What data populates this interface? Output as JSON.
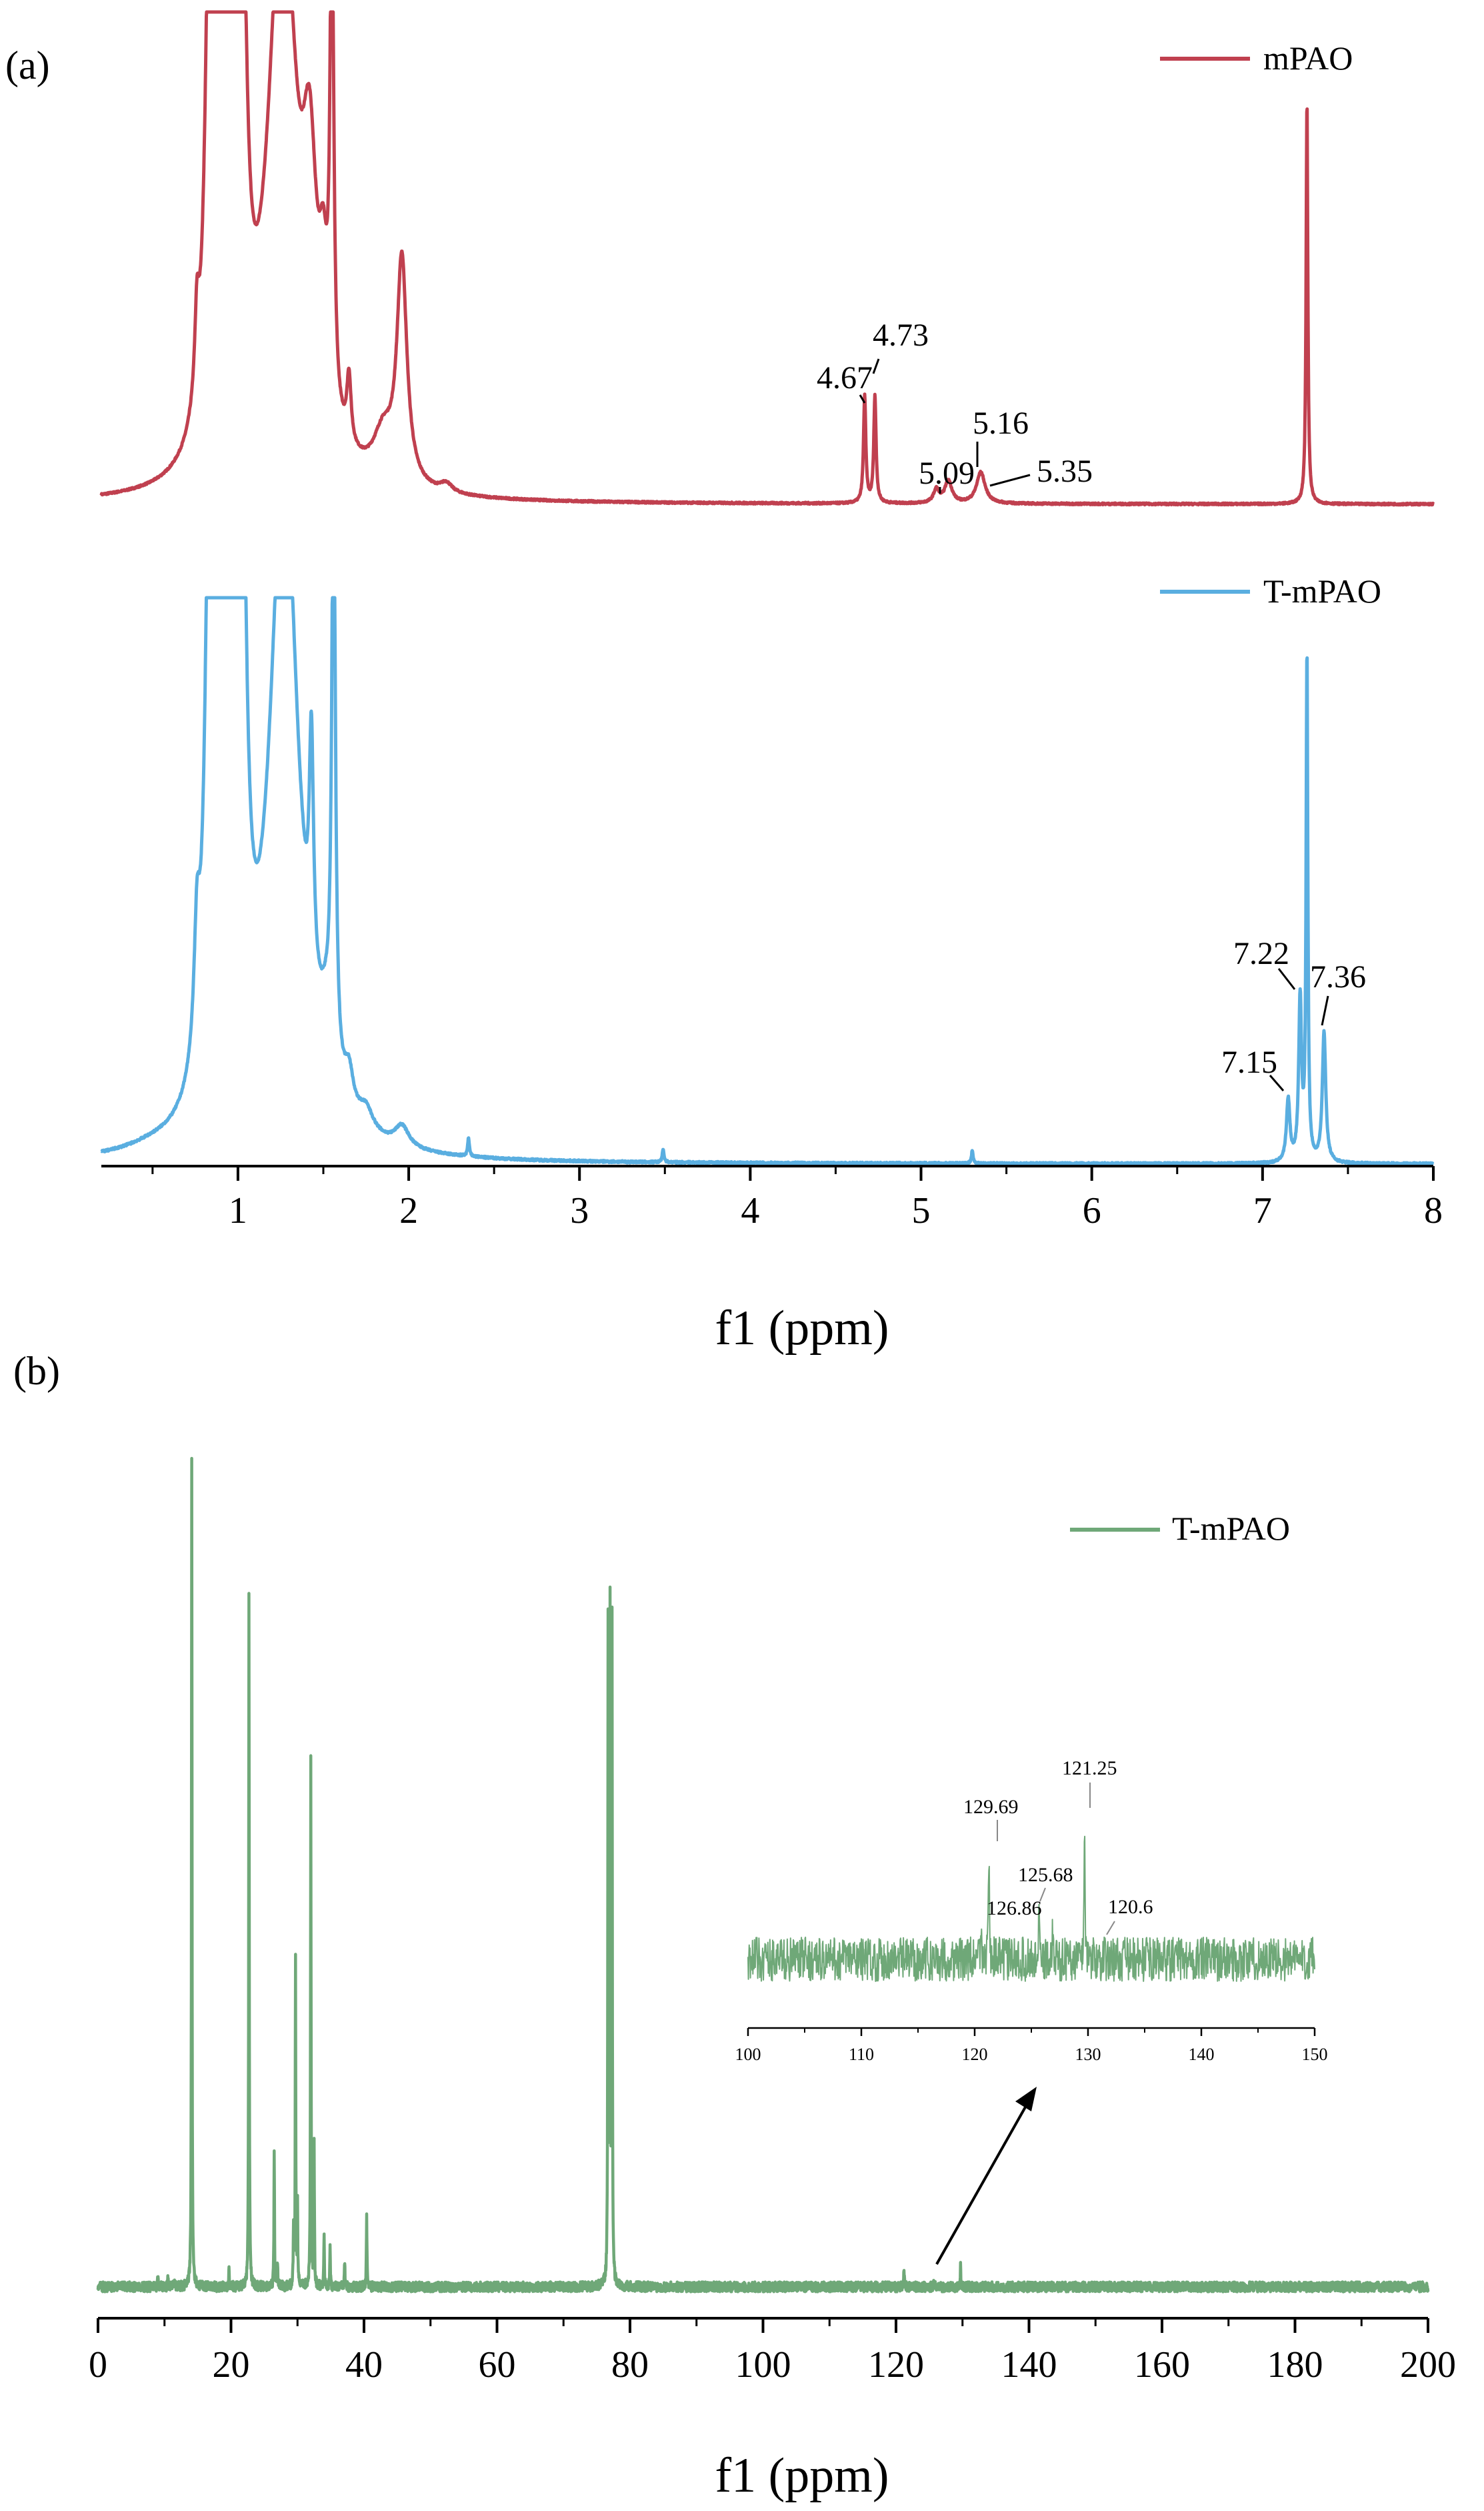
{
  "figure": {
    "panel_a_label": "(a)",
    "panel_b_label": "(b)"
  },
  "colors": {
    "mPAO": "#c0404f",
    "T_mPAO_1H": "#5aaee0",
    "T_mPAO_13C": "#6fa878",
    "axis": "#000000"
  },
  "chart_data": [
    {
      "type": "line",
      "panel": "(a)",
      "xlabel": "f1 (ppm)",
      "xlim": [
        0.2,
        8.0
      ],
      "xticks": [
        1,
        2,
        3,
        4,
        5,
        6,
        7,
        8
      ],
      "xtick_labels": [
        "1",
        "2",
        "3",
        "4",
        "5",
        "6",
        "7",
        "8"
      ],
      "y_axis": "none",
      "series": [
        {
          "name": "mPAO",
          "peak_labels": [
            "4.67",
            "4.73",
            "5.09",
            "5.16",
            "5.35"
          ],
          "peaks": [
            {
              "x": 0.76,
              "h": 0.18
            },
            {
              "x": 0.84,
              "h": 1.2,
              "w": 0.03
            },
            {
              "x": 0.88,
              "h": 1.2,
              "w": 0.03
            },
            {
              "x": 0.95,
              "h": 1.2,
              "w": 0.035
            },
            {
              "x": 1.02,
              "h": 1.2,
              "w": 0.03
            },
            {
              "x": 1.26,
              "h": 1.3,
              "w": 0.1
            },
            {
              "x": 1.42,
              "h": 0.5,
              "w": 0.05
            },
            {
              "x": 1.5,
              "h": 0.25,
              "w": 0.03
            },
            {
              "x": 1.55,
              "h": 1.2,
              "w": 0.012
            },
            {
              "x": 1.65,
              "h": 0.15,
              "w": 0.015
            },
            {
              "x": 1.85,
              "h": 0.1,
              "w": 0.07
            },
            {
              "x": 1.96,
              "h": 0.5,
              "w": 0.035
            },
            {
              "x": 2.22,
              "h": 0.02,
              "w": 0.04
            },
            {
              "x": 4.67,
              "h": 0.24,
              "w": 0.008
            },
            {
              "x": 4.73,
              "h": 0.24,
              "w": 0.008
            },
            {
              "x": 5.09,
              "h": 0.03,
              "w": 0.02
            },
            {
              "x": 5.16,
              "h": 0.05,
              "w": 0.025
            },
            {
              "x": 5.35,
              "h": 0.07,
              "w": 0.03
            },
            {
              "x": 7.26,
              "h": 0.9,
              "w": 0.006
            }
          ]
        },
        {
          "name": "T-mPAO",
          "peak_labels": [
            "7.15",
            "7.22",
            "7.36"
          ],
          "peaks": [
            {
              "x": 0.5,
              "h": 0.01,
              "w": 0.2
            },
            {
              "x": 0.76,
              "h": 0.22,
              "w": 0.02
            },
            {
              "x": 0.84,
              "h": 1.2,
              "w": 0.03
            },
            {
              "x": 0.88,
              "h": 1.2,
              "w": 0.03
            },
            {
              "x": 0.95,
              "h": 1.2,
              "w": 0.035
            },
            {
              "x": 1.02,
              "h": 1.2,
              "w": 0.03
            },
            {
              "x": 1.27,
              "h": 1.3,
              "w": 0.1
            },
            {
              "x": 1.43,
              "h": 0.45,
              "w": 0.015
            },
            {
              "x": 1.52,
              "h": 0.1,
              "w": 0.05
            },
            {
              "x": 1.56,
              "h": 1.2,
              "w": 0.012
            },
            {
              "x": 1.65,
              "h": 0.07,
              "w": 0.03
            },
            {
              "x": 1.75,
              "h": 0.04,
              "w": 0.05
            },
            {
              "x": 1.96,
              "h": 0.04,
              "w": 0.05
            },
            {
              "x": 2.35,
              "h": 0.035,
              "w": 0.006
            },
            {
              "x": 3.49,
              "h": 0.025,
              "w": 0.006
            },
            {
              "x": 5.3,
              "h": 0.025,
              "w": 0.006
            },
            {
              "x": 7.15,
              "h": 0.12,
              "w": 0.012
            },
            {
              "x": 7.22,
              "h": 0.31,
              "w": 0.01
            },
            {
              "x": 7.26,
              "h": 0.97,
              "w": 0.006
            },
            {
              "x": 7.36,
              "h": 0.25,
              "w": 0.012
            }
          ]
        }
      ]
    },
    {
      "type": "line",
      "panel": "(b)",
      "xlabel": "f1 (ppm)",
      "xlim": [
        0,
        200
      ],
      "xticks": [
        0,
        20,
        40,
        60,
        80,
        100,
        120,
        140,
        160,
        180,
        200
      ],
      "xtick_labels": [
        "0",
        "20",
        "40",
        "60",
        "80",
        "100",
        "120",
        "140",
        "160",
        "180",
        "200"
      ],
      "y_axis": "none",
      "series": [
        {
          "name": "T-mPAO",
          "peaks": [
            {
              "x": 9.0,
              "h": 0.01
            },
            {
              "x": 10.5,
              "h": 0.012
            },
            {
              "x": 11.5,
              "h": 0.01
            },
            {
              "x": 14.1,
              "h": 1.0
            },
            {
              "x": 19.7,
              "h": 0.025
            },
            {
              "x": 22.7,
              "h": 0.84
            },
            {
              "x": 26.5,
              "h": 0.16
            },
            {
              "x": 27.0,
              "h": 0.03
            },
            {
              "x": 29.4,
              "h": 0.07
            },
            {
              "x": 29.7,
              "h": 0.39
            },
            {
              "x": 30.0,
              "h": 0.1
            },
            {
              "x": 32.0,
              "h": 0.64
            },
            {
              "x": 32.5,
              "h": 0.17
            },
            {
              "x": 34.0,
              "h": 0.06
            },
            {
              "x": 34.9,
              "h": 0.05
            },
            {
              "x": 37.1,
              "h": 0.03
            },
            {
              "x": 40.4,
              "h": 0.09
            },
            {
              "x": 76.7,
              "h": 0.79
            },
            {
              "x": 77.0,
              "h": 0.8
            },
            {
              "x": 77.3,
              "h": 0.79
            },
            {
              "x": 121.2,
              "h": 0.023
            },
            {
              "x": 125.7,
              "h": 0.012
            },
            {
              "x": 129.7,
              "h": 0.025
            }
          ]
        }
      ],
      "inset": {
        "xlim": [
          100,
          150
        ],
        "xticks": [
          100,
          110,
          120,
          130,
          140,
          150
        ],
        "xtick_labels": [
          "100",
          "110",
          "120",
          "130",
          "140",
          "150"
        ],
        "peak_labels": [
          "129.69",
          "121.25",
          "125.68",
          "126.86",
          "120.6"
        ],
        "peaks": [
          {
            "x": 121.25,
            "h": 0.75
          },
          {
            "x": 125.68,
            "h": 0.25
          },
          {
            "x": 126.86,
            "h": 0.15
          },
          {
            "x": 129.69,
            "h": 0.9
          },
          {
            "x": 120.6,
            "h": 0.12
          }
        ]
      }
    }
  ]
}
